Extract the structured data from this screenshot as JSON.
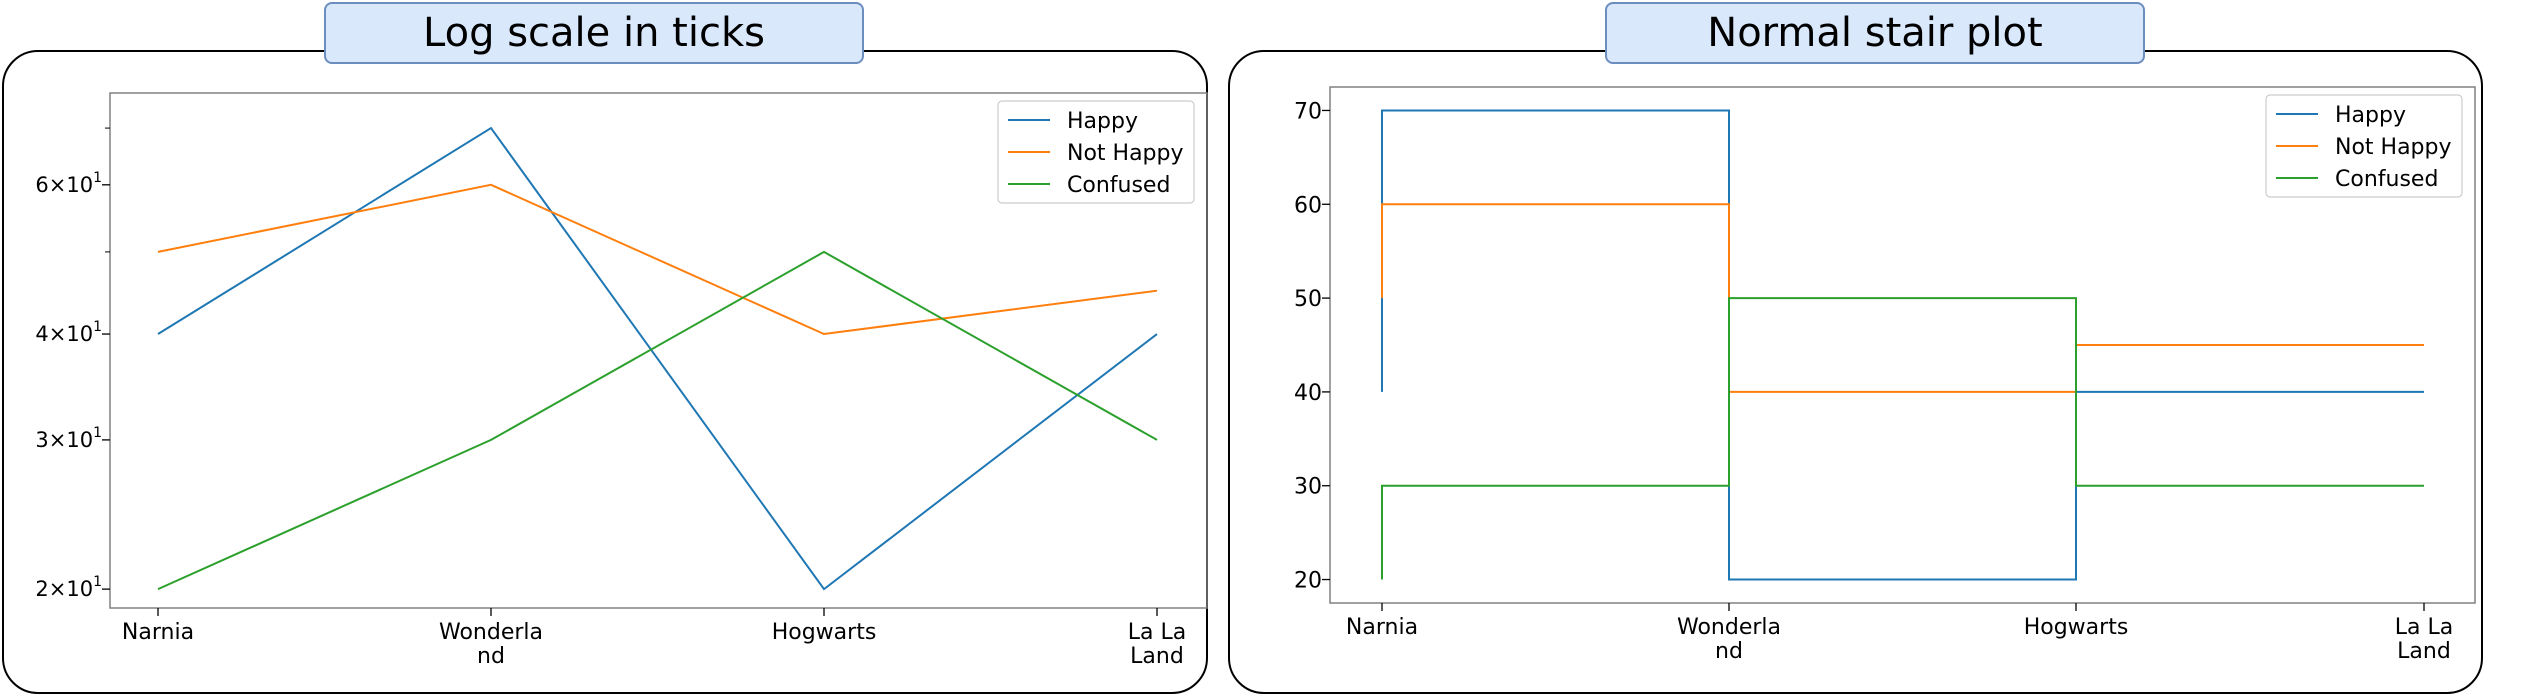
{
  "panels": [
    {
      "title": "Log scale in ticks",
      "chart_data": {
        "type": "line",
        "categories": [
          "Narnia",
          "Wonderland",
          "Hogwarts",
          "La La Land"
        ],
        "category_display": [
          [
            "Narnia"
          ],
          [
            "Wonderla",
            "nd"
          ],
          [
            "Hogwarts"
          ],
          [
            "La La",
            "Land"
          ]
        ],
        "series": [
          {
            "name": "Happy",
            "color": "#1f77b4",
            "values": [
              40,
              70,
              20,
              40
            ]
          },
          {
            "name": "Not Happy",
            "color": "#ff7f0e",
            "values": [
              50,
              60,
              40,
              45
            ]
          },
          {
            "name": "Confused",
            "color": "#2ca02c",
            "values": [
              20,
              30,
              50,
              30
            ]
          }
        ],
        "yscale": "log",
        "ylim": [
          19,
          77
        ],
        "yticks": [
          {
            "value": 20,
            "base": "2×10",
            "exp": "1"
          },
          {
            "value": 30,
            "base": "3×10",
            "exp": "1"
          },
          {
            "value": 40,
            "base": "4×10",
            "exp": "1"
          },
          {
            "value": 60,
            "base": "6×10",
            "exp": "1"
          }
        ],
        "legend_position": "upper right",
        "grid": false
      }
    },
    {
      "title": "Normal stair plot",
      "chart_data": {
        "type": "line",
        "drawstyle": "steps-pre",
        "categories": [
          "Narnia",
          "Wonderland",
          "Hogwarts",
          "La La Land"
        ],
        "category_display": [
          [
            "Narnia"
          ],
          [
            "Wonderla",
            "nd"
          ],
          [
            "Hogwarts"
          ],
          [
            "La La",
            "Land"
          ]
        ],
        "series": [
          {
            "name": "Happy",
            "color": "#1f77b4",
            "values": [
              40,
              70,
              20,
              40
            ]
          },
          {
            "name": "Not Happy",
            "color": "#ff7f0e",
            "values": [
              50,
              60,
              40,
              45
            ]
          },
          {
            "name": "Confused",
            "color": "#2ca02c",
            "values": [
              20,
              30,
              50,
              30
            ]
          }
        ],
        "yscale": "linear",
        "ylim": [
          17.5,
          72.5
        ],
        "yticks": [
          20,
          30,
          40,
          50,
          60,
          70
        ],
        "legend_position": "upper right",
        "grid": false
      }
    }
  ]
}
